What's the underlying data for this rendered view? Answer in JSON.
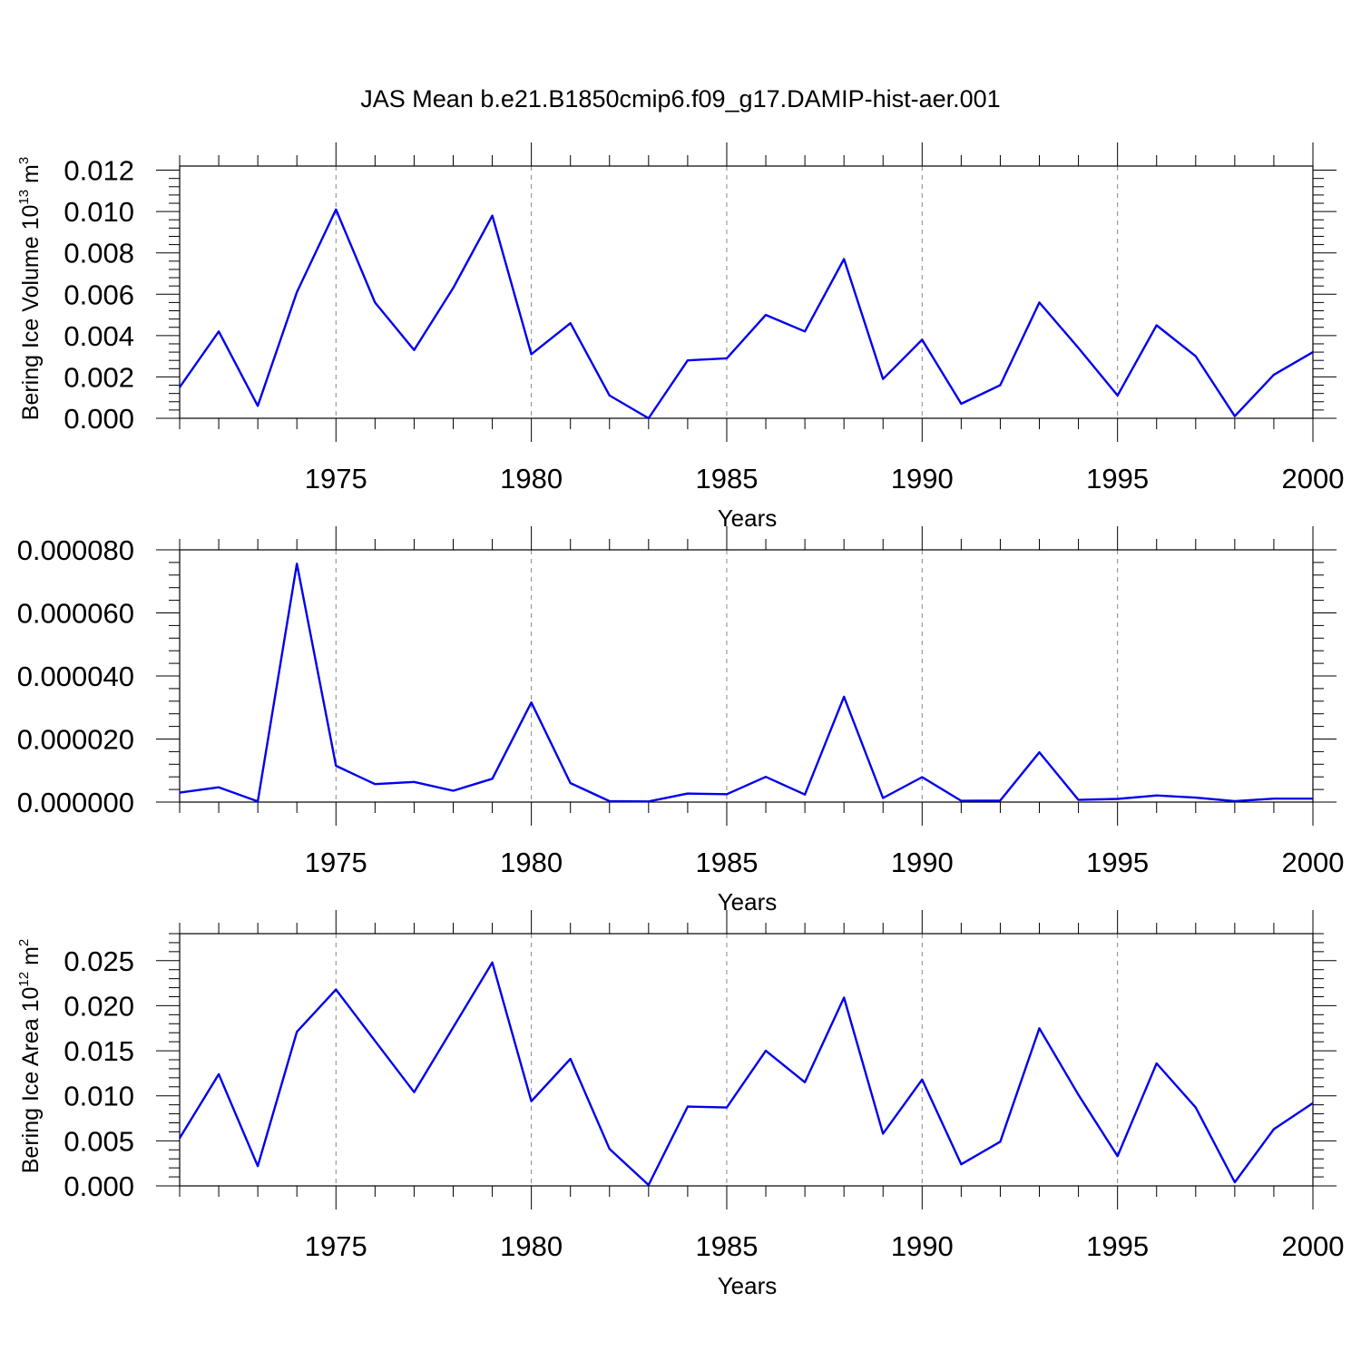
{
  "title": "JAS Mean b.e21.B1850cmip6.f09_g17.DAMIP-hist-aer.001",
  "colors": {
    "line": "#0000ee",
    "axis": "#000000",
    "grid": "#888888"
  },
  "chart_data": [
    {
      "type": "line",
      "name": "ice-volume",
      "xlabel": "Years",
      "ylabel": {
        "text": "Bering Ice Volume 10",
        "sup": "13",
        "unit": " m",
        "unit_sup": "3"
      },
      "xlim": [
        1971,
        2000
      ],
      "ylim": [
        0,
        0.0122
      ],
      "yticks": [
        "0.000",
        "0.002",
        "0.004",
        "0.006",
        "0.008",
        "0.010",
        "0.012"
      ],
      "ytick_values": [
        0,
        0.002,
        0.004,
        0.006,
        0.008,
        0.01,
        0.012
      ],
      "xticks": [
        1975,
        1980,
        1985,
        1990,
        1995,
        2000
      ],
      "grid": "x-dashed",
      "x": [
        1971,
        1972,
        1973,
        1974,
        1975,
        1976,
        1977,
        1978,
        1979,
        1980,
        1981,
        1982,
        1983,
        1984,
        1985,
        1986,
        1987,
        1988,
        1989,
        1990,
        1991,
        1992,
        1993,
        1994,
        1995,
        1996,
        1997,
        1998,
        1999,
        2000
      ],
      "values": [
        0.0015,
        0.0042,
        0.0006,
        0.0061,
        0.0101,
        0.0056,
        0.0033,
        0.0063,
        0.0098,
        0.0031,
        0.0046,
        0.0011,
        0.0,
        0.0028,
        0.0029,
        0.005,
        0.0042,
        0.0077,
        0.0019,
        0.0038,
        0.0007,
        0.0016,
        0.0056,
        0.0034,
        0.0011,
        0.0045,
        0.003,
        0.0001,
        0.0021,
        0.0032
      ]
    },
    {
      "type": "line",
      "name": "middle-panel",
      "xlabel": "Years",
      "ylabel": null,
      "xlim": [
        1971,
        2000
      ],
      "ylim": [
        0,
        8e-05
      ],
      "yticks": [
        "0.000000",
        "0.000020",
        "0.000040",
        "0.000060",
        "0.000080"
      ],
      "ytick_values": [
        0,
        2e-05,
        4e-05,
        6e-05,
        8e-05
      ],
      "xticks": [
        1975,
        1980,
        1985,
        1990,
        1995,
        2000
      ],
      "grid": "x-dashed",
      "x": [
        1971,
        1972,
        1973,
        1974,
        1975,
        1976,
        1977,
        1978,
        1979,
        1980,
        1981,
        1982,
        1983,
        1984,
        1985,
        1986,
        1987,
        1988,
        1989,
        1990,
        1991,
        1992,
        1993,
        1994,
        1995,
        1996,
        1997,
        1998,
        1999,
        2000
      ],
      "values": [
        3e-06,
        4.7e-06,
        2e-07,
        7.56e-05,
        1.15e-05,
        5.7e-06,
        6.4e-06,
        3.6e-06,
        7.4e-06,
        3.16e-05,
        6e-06,
        3e-07,
        2e-07,
        2.7e-06,
        2.5e-06,
        8e-06,
        2.4e-06,
        3.34e-05,
        1.3e-06,
        7.9e-06,
        4e-07,
        5e-07,
        1.58e-05,
        7e-07,
        1e-06,
        2.1e-06,
        1.4e-06,
        3e-07,
        1.1e-06,
        1.1e-06
      ]
    },
    {
      "type": "line",
      "name": "ice-area",
      "xlabel": "Years",
      "ylabel": {
        "text": "Bering Ice Area 10",
        "sup": "12",
        "unit": " m",
        "unit_sup": "2"
      },
      "xlim": [
        1971,
        2000
      ],
      "ylim": [
        0,
        0.028
      ],
      "yticks": [
        "0.000",
        "0.005",
        "0.010",
        "0.015",
        "0.020",
        "0.025"
      ],
      "ytick_values": [
        0,
        0.005,
        0.01,
        0.015,
        0.02,
        0.025
      ],
      "xticks": [
        1975,
        1980,
        1985,
        1990,
        1995,
        2000
      ],
      "grid": "x-dashed",
      "x": [
        1971,
        1972,
        1973,
        1974,
        1975,
        1976,
        1977,
        1978,
        1979,
        1980,
        1981,
        1982,
        1983,
        1984,
        1985,
        1986,
        1987,
        1988,
        1989,
        1990,
        1991,
        1992,
        1993,
        1994,
        1995,
        1996,
        1997,
        1998,
        1999,
        2000
      ],
      "values": [
        0.0053,
        0.0124,
        0.0022,
        0.0171,
        0.0218,
        0.0161,
        0.0104,
        0.0176,
        0.0248,
        0.0094,
        0.0141,
        0.0041,
        0.0001,
        0.0088,
        0.0087,
        0.015,
        0.0115,
        0.0209,
        0.0058,
        0.0118,
        0.0024,
        0.0049,
        0.0175,
        0.0101,
        0.0033,
        0.0136,
        0.0087,
        0.0004,
        0.0063,
        0.0092
      ]
    }
  ]
}
